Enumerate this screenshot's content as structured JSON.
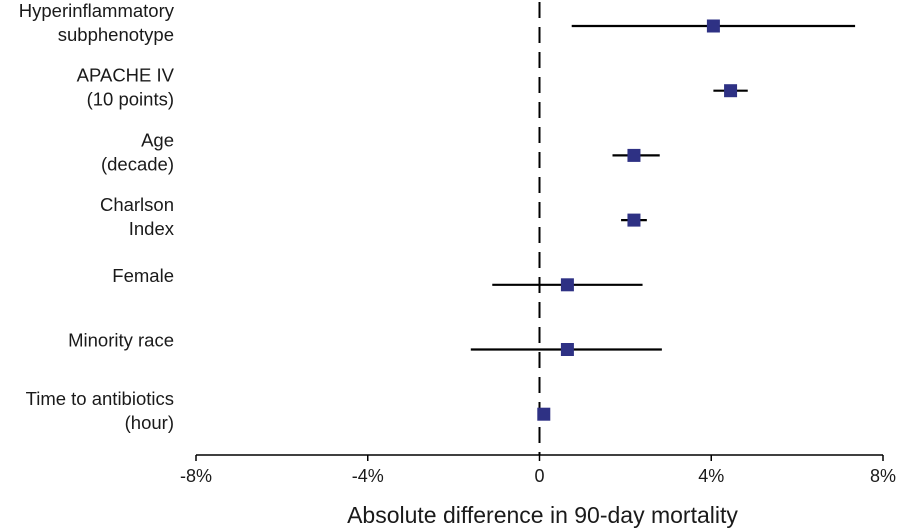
{
  "chart_data": {
    "type": "scatter",
    "title": "",
    "xlabel": "Absolute difference in 90-day mortality",
    "ylabel": "",
    "xlim": [
      -8,
      8
    ],
    "x_unit": "%",
    "x_ticks": [
      {
        "value": -8,
        "label": "-8%"
      },
      {
        "value": -4,
        "label": "-4%"
      },
      {
        "value": 0,
        "label": "0"
      },
      {
        "value": 4,
        "label": "4%"
      },
      {
        "value": 8,
        "label": "8%"
      }
    ],
    "reference_line": {
      "x": 0,
      "style": "dashed"
    },
    "grid": false,
    "legend": "none",
    "marker": "square",
    "colors": {
      "marker": "#2e3184",
      "line": "#000000",
      "text": "#1a1a1a"
    },
    "rows": [
      {
        "label": [
          "Hyperinflammatory",
          "subphenotype"
        ],
        "estimate": 4.05,
        "lower": 0.75,
        "upper": 7.35
      },
      {
        "label": [
          "APACHE IV",
          "(10 points)"
        ],
        "estimate": 4.45,
        "lower": 4.05,
        "upper": 4.85
      },
      {
        "label": [
          "Age",
          "(decade)"
        ],
        "estimate": 2.2,
        "lower": 1.7,
        "upper": 2.8
      },
      {
        "label": [
          "Charlson",
          "Index"
        ],
        "estimate": 2.2,
        "lower": 1.9,
        "upper": 2.5
      },
      {
        "label": [
          "Female"
        ],
        "estimate": 0.65,
        "lower": -1.1,
        "upper": 2.4
      },
      {
        "label": [
          "Minority race"
        ],
        "estimate": 0.65,
        "lower": -1.6,
        "upper": 2.85
      },
      {
        "label": [
          "Time to antibiotics",
          "(hour)"
        ],
        "estimate": 0.1,
        "lower": 0.05,
        "upper": 0.15
      }
    ]
  }
}
